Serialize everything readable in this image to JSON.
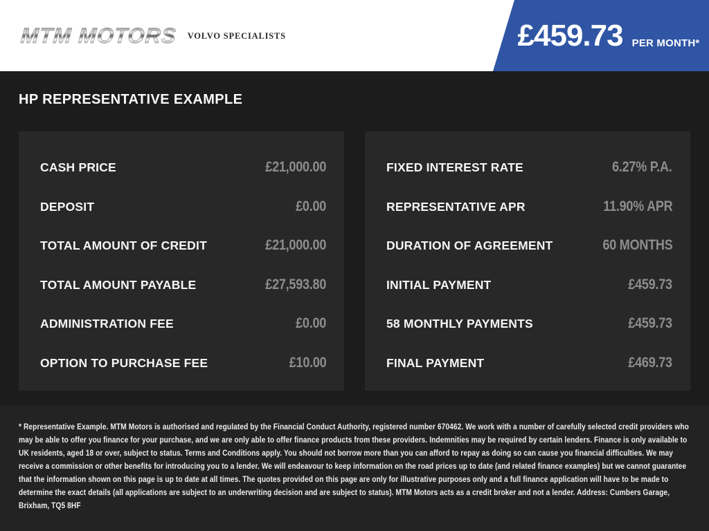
{
  "header": {
    "logo_text": "MTM MOTORS",
    "logo_subtitle": "VOLVO SPECIALISTS",
    "price_banner": {
      "amount": "£459.73",
      "period": "PER MONTH*"
    }
  },
  "page_title": "HP REPRESENTATIVE EXAMPLE",
  "finance": {
    "left_rows": [
      {
        "label": "CASH PRICE",
        "value": "£21,000.00"
      },
      {
        "label": "DEPOSIT",
        "value": "£0.00"
      },
      {
        "label": "TOTAL AMOUNT OF CREDIT",
        "value": "£21,000.00"
      },
      {
        "label": "TOTAL AMOUNT PAYABLE",
        "value": "£27,593.80"
      },
      {
        "label": "ADMINISTRATION FEE",
        "value": "£0.00"
      },
      {
        "label": "OPTION TO PURCHASE FEE",
        "value": "£10.00"
      }
    ],
    "right_rows": [
      {
        "label": "FIXED INTEREST RATE",
        "value": "6.27% P.A."
      },
      {
        "label": "REPRESENTATIVE APR",
        "value": "11.90% APR"
      },
      {
        "label": "DURATION OF AGREEMENT",
        "value": "60 MONTHS"
      },
      {
        "label": "INITIAL PAYMENT",
        "value": "£459.73"
      },
      {
        "label": "58 MONTHLY PAYMENTS",
        "value": "£459.73"
      },
      {
        "label": "FINAL PAYMENT",
        "value": "£469.73"
      }
    ]
  },
  "disclaimer": "* Representative Example. MTM Motors is authorised and regulated by the Financial Conduct Authority, registered number 670462. We work with a number of carefully selected credit providers who may be able to offer you finance for your purchase, and we are only able to offer finance products from these providers. Indemnities may be required by certain lenders. Finance is only available to UK residents, aged 18 or over, subject to status. Terms and Conditions apply. You should not borrow more than you can afford to repay as doing so can cause you financial difficulties. We may receive a commission or other benefits for introducing you to a lender. We will endeavour to keep information on the road prices up to date (and related finance examples) but we cannot guarantee that the information shown on this page is up to date at all times. The quotes provided on this page are only for illustrative purposes only and a full finance application will have to be made to determine the exact details (all applications are subject to an underwriting decision and are subject to status). MTM Motors acts as a credit broker and not a lender. Address: Cumbers Garage, Brixham, TQ5 8HF",
  "colors": {
    "accent_blue": "#2F55A4",
    "page_bg": "#1C1C1C",
    "panel_bg": "#282828",
    "disclaimer_bg": "#232323",
    "value_gray": "#8D8D8D"
  }
}
